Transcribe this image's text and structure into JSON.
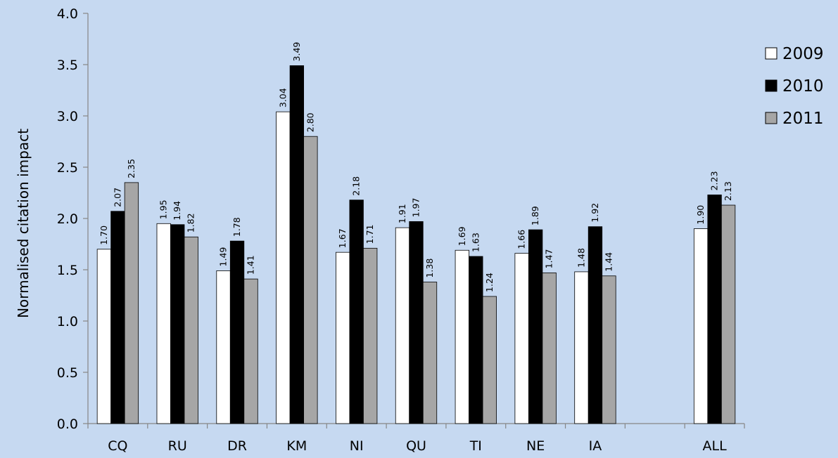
{
  "chart_data": {
    "type": "bar",
    "title": "",
    "xlabel": "",
    "ylabel": "Normalised citation impact",
    "ylim": [
      0,
      4
    ],
    "yticks": [
      "0.0",
      "0.5",
      "1.0",
      "1.5",
      "2.0",
      "2.5",
      "3.0",
      "3.5",
      "4.0"
    ],
    "categories": [
      "CQ",
      "RU",
      "DR",
      "KM",
      "NI",
      "QU",
      "TI",
      "NE",
      "IA",
      "",
      "ALL"
    ],
    "series": [
      {
        "name": "2009",
        "color": "#ffffff",
        "values": [
          1.7,
          1.95,
          1.49,
          3.04,
          1.67,
          1.91,
          1.69,
          1.66,
          1.48,
          null,
          1.9
        ],
        "labels": [
          "1.70",
          "1.95",
          "1.49",
          "3.04",
          "1.67",
          "1.91",
          "1.69",
          "1.66",
          "1.48",
          "",
          "1.90"
        ]
      },
      {
        "name": "2010",
        "color": "#000000",
        "values": [
          2.07,
          1.94,
          1.78,
          3.49,
          2.18,
          1.97,
          1.63,
          1.89,
          1.92,
          null,
          2.23
        ],
        "labels": [
          "2.07",
          "1.94",
          "1.78",
          "3.49",
          "2.18",
          "1.97",
          "1.63",
          "1.89",
          "1.92",
          "",
          "2.23"
        ]
      },
      {
        "name": "2011",
        "color": "#a6a6a6",
        "values": [
          2.35,
          1.82,
          1.41,
          2.8,
          1.71,
          1.38,
          1.24,
          1.47,
          1.44,
          null,
          2.13
        ],
        "labels": [
          "2.35",
          "1.82",
          "1.41",
          "2.80",
          "1.71",
          "1.38",
          "1.24",
          "1.47",
          "1.44",
          "",
          "2.13"
        ]
      }
    ],
    "grid": false,
    "legend_position": "right",
    "background": "#c6d9f1"
  }
}
